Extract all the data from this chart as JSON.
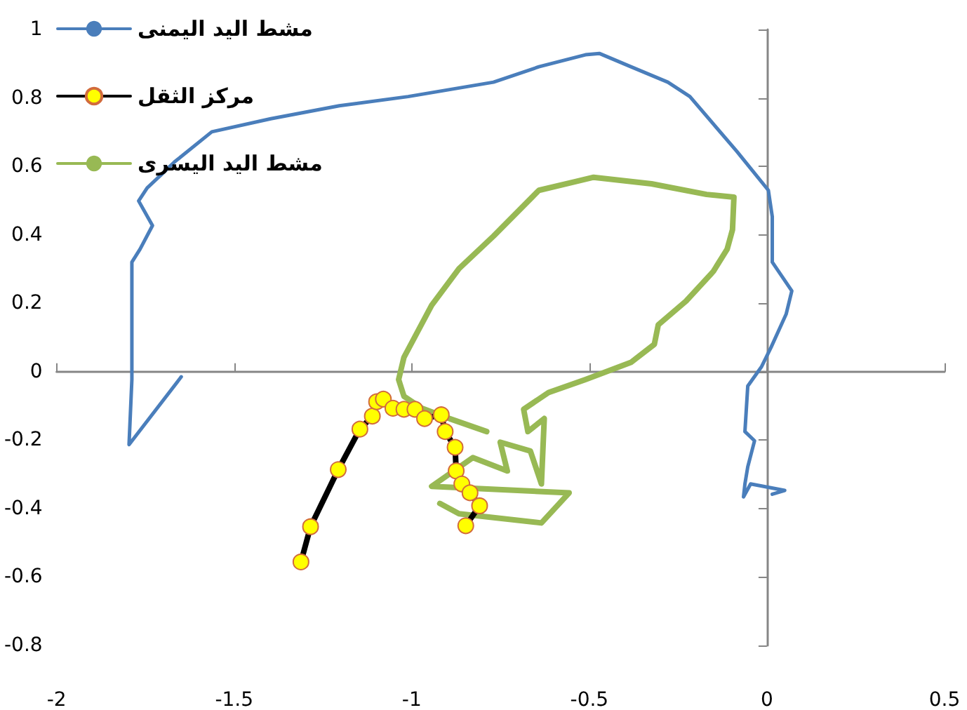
{
  "chart_data": {
    "type": "line",
    "xlim": [
      -2,
      0.5
    ],
    "xticks": [
      -2,
      -1.5,
      -1,
      -0.5,
      0,
      0.5
    ],
    "ylim": [
      -0.8,
      1
    ],
    "yticks": [
      -0.8,
      -0.6,
      -0.4,
      -0.2,
      0,
      0.2,
      0.4,
      0.6,
      0.8,
      1
    ],
    "legend": "top left",
    "marker": "none",
    "line_style": "solid",
    "series": [
      {
        "name": "مشط اليد اليمنى",
        "color": "#4a7ebb",
        "x": [
          -1.649,
          -1.796,
          -1.788,
          -1.788,
          -1.765,
          -1.73,
          -1.769,
          -1.745,
          -1.706,
          -1.668,
          -1.563,
          -1.397,
          -1.204,
          -1.01,
          -0.77,
          -0.642,
          -0.511,
          -0.472,
          -0.383,
          -0.279,
          -0.217,
          -0.085,
          0.004,
          0.015,
          0.015,
          0.07,
          0.054,
          0.012,
          -0.015,
          -0.054,
          -0.062,
          -0.035,
          -0.054,
          -0.062,
          -0.066,
          -0.046,
          0.05,
          0.015
        ],
        "values": [
          -0.015,
          -0.213,
          -0.023,
          0.32,
          0.358,
          0.427,
          0.499,
          0.537,
          0.575,
          0.613,
          0.701,
          0.739,
          0.777,
          0.804,
          0.846,
          0.891,
          0.926,
          0.93,
          0.891,
          0.846,
          0.804,
          0.644,
          0.53,
          0.453,
          0.32,
          0.236,
          0.168,
          0.072,
          0.015,
          -0.042,
          -0.175,
          -0.202,
          -0.278,
          -0.328,
          -0.366,
          -0.328,
          -0.347,
          -0.358
        ]
      },
      {
        "name": "مركز الثقل",
        "color": "#000000",
        "marker": "circle",
        "x": [
          -1.312,
          -1.285,
          -1.207,
          -1.146,
          -1.111,
          -1.099,
          -1.08,
          -1.053,
          -1.022,
          -0.991,
          -0.964,
          -0.917,
          -0.906,
          -0.878,
          -0.875,
          -0.859,
          -0.836,
          -0.809,
          -0.848
        ],
        "values": [
          -0.556,
          -0.453,
          -0.286,
          -0.168,
          -0.13,
          -0.088,
          -0.08,
          -0.107,
          -0.11,
          -0.11,
          -0.137,
          -0.126,
          -0.175,
          -0.221,
          -0.29,
          -0.328,
          -0.354,
          -0.392,
          -0.45
        ]
      },
      {
        "name": "مشط اليد اليسرى",
        "color": "#98b954",
        "x": [
          -0.789,
          -0.894,
          -0.971,
          -1.022,
          -1.037,
          -1.022,
          -0.944,
          -0.867,
          -0.77,
          -0.642,
          -0.488,
          -0.325,
          -0.17,
          -0.093,
          -0.097,
          -0.112,
          -0.151,
          -0.228,
          -0.306,
          -0.317,
          -0.383,
          -0.511,
          -0.615,
          -0.685,
          -0.673,
          -0.627,
          -0.635,
          -0.666,
          -0.751,
          -0.731,
          -0.828,
          -0.944,
          -0.557,
          -0.635,
          -0.867,
          -0.921
        ],
        "values": [
          -0.175,
          -0.137,
          -0.107,
          -0.072,
          -0.023,
          0.042,
          0.194,
          0.301,
          0.396,
          0.53,
          0.568,
          0.549,
          0.518,
          0.51,
          0.415,
          0.358,
          0.293,
          0.206,
          0.137,
          0.08,
          0.027,
          -0.023,
          -0.061,
          -0.11,
          -0.175,
          -0.137,
          -0.328,
          -0.232,
          -0.206,
          -0.29,
          -0.251,
          -0.335,
          -0.354,
          -0.442,
          -0.415,
          -0.385
        ]
      }
    ]
  }
}
